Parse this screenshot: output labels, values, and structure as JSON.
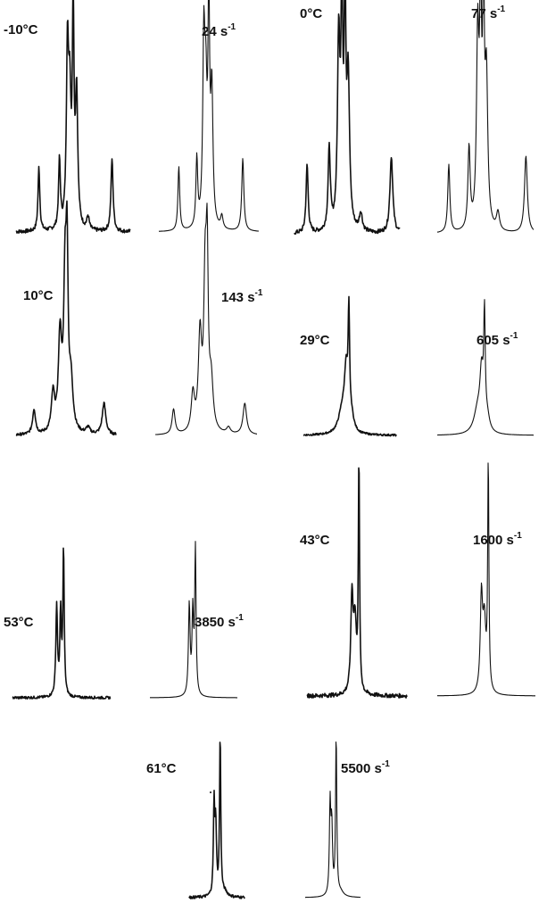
{
  "panels": [
    {
      "id": "m10",
      "temp_label": "-10°C",
      "rate_value": "24",
      "rate_unit": "s",
      "rate_exp": "-1",
      "shape": "slow_a"
    },
    {
      "id": "p0",
      "temp_label": "0°C",
      "rate_value": "77",
      "rate_unit": "s",
      "rate_exp": "-1",
      "shape": "slow_b"
    },
    {
      "id": "p10",
      "temp_label": "10°C",
      "rate_value": "143",
      "rate_unit": "s",
      "rate_exp": "-1",
      "shape": "slow_c"
    },
    {
      "id": "p29",
      "temp_label": "29°C",
      "rate_value": "605",
      "rate_unit": "s",
      "rate_exp": "-1",
      "shape": "mid"
    },
    {
      "id": "p53",
      "temp_label": "53°C",
      "rate_value": "3850",
      "rate_unit": "s",
      "rate_exp": "-1",
      "shape": "fast"
    },
    {
      "id": "p43",
      "temp_label": "43°C",
      "rate_value": "1600",
      "rate_unit": "s",
      "rate_exp": "-1",
      "shape": "fast_tall"
    },
    {
      "id": "p61",
      "temp_label": "61°C",
      "rate_value": "5500",
      "rate_unit": "s",
      "rate_exp": "-1",
      "shape": "fastest"
    }
  ]
}
